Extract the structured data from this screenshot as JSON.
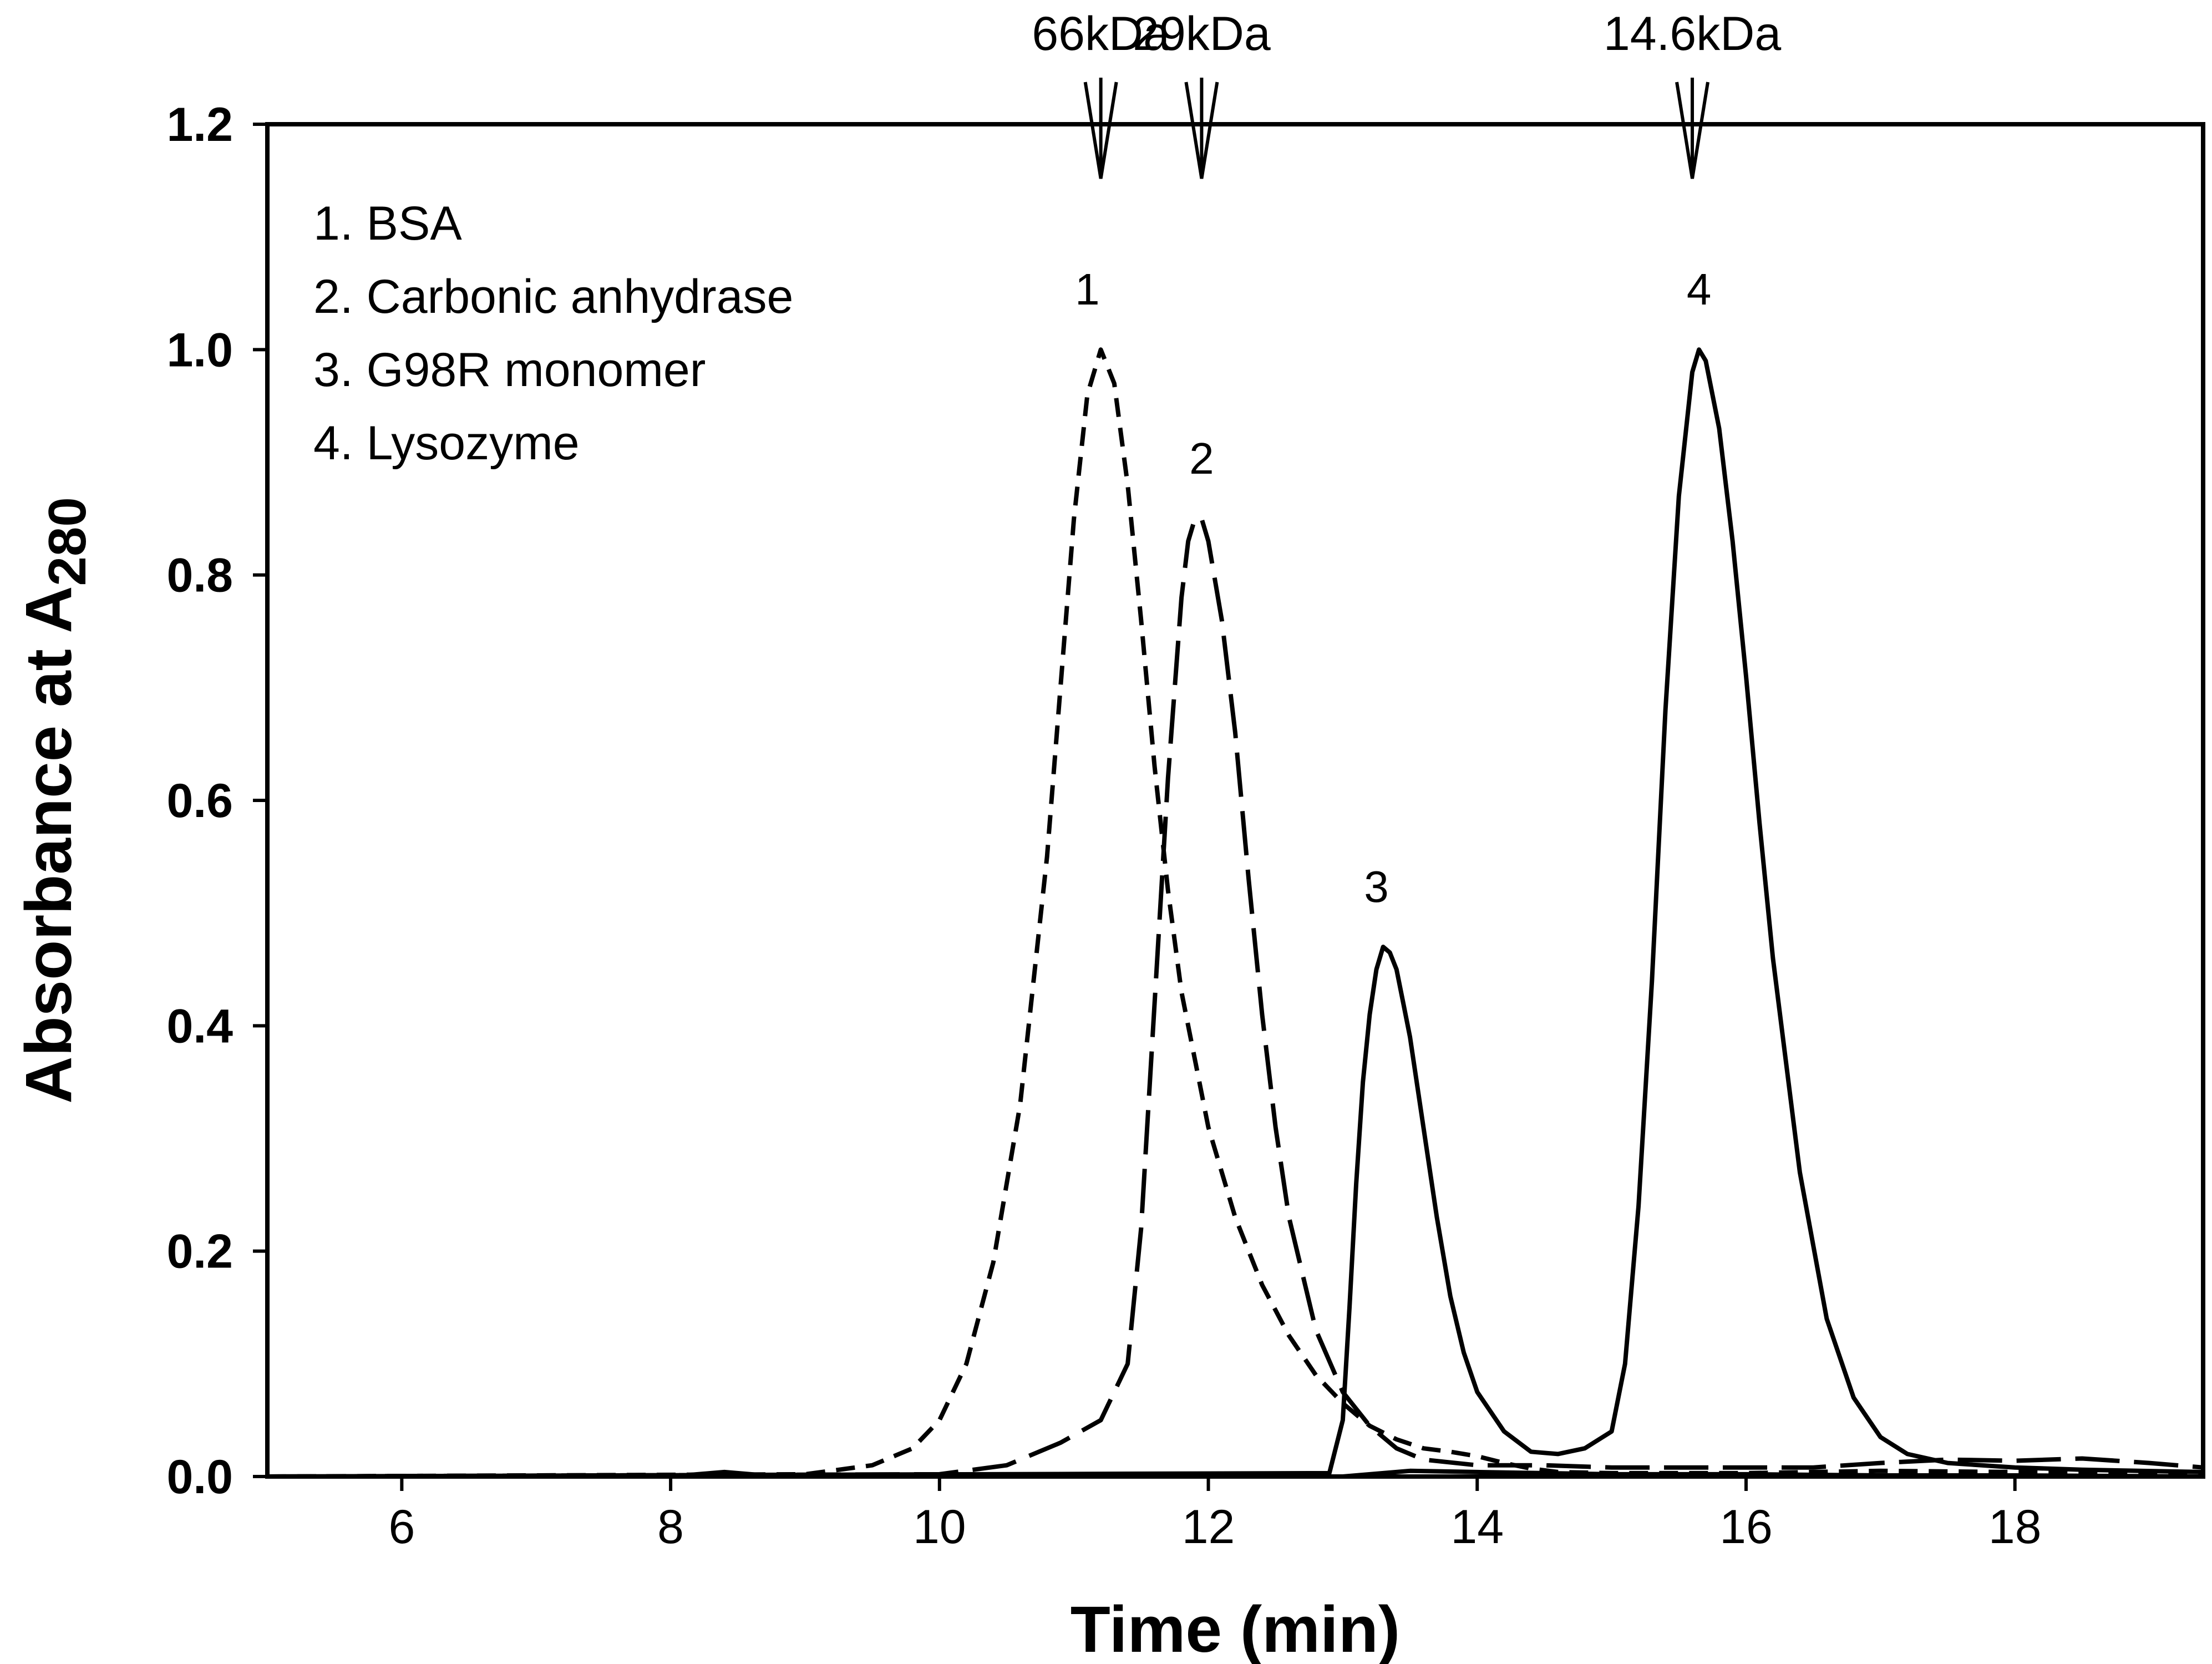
{
  "chart_data": {
    "type": "line",
    "title": "",
    "xlabel": "Time (min)",
    "ylabel_main": "Absorbance at A",
    "ylabel_sub": "280",
    "xlim": [
      5,
      19.4
    ],
    "ylim": [
      0,
      1.2
    ],
    "xticks": [
      6,
      8,
      10,
      12,
      14,
      16,
      18
    ],
    "xtick_labels": [
      "6",
      "8",
      "10",
      "12",
      "14",
      "16",
      "18"
    ],
    "yticks": [
      0,
      0.2,
      0.4,
      0.6,
      0.8,
      1.0,
      1.2
    ],
    "ytick_labels": [
      "0.0",
      "0.2",
      "0.4",
      "0.6",
      "0.8",
      "1.0",
      "1.2"
    ],
    "grid": false,
    "legend_position": "top-left",
    "legend": [
      "1. BSA",
      "2. Carbonic anhydrase",
      "3. G98R monomer",
      "4. Lysozyme"
    ],
    "markers": [
      {
        "label": "66kDa",
        "x": 11.2
      },
      {
        "label": "29kDa",
        "x": 11.95
      },
      {
        "label": "14.6kDa",
        "x": 15.6
      }
    ],
    "peak_labels": [
      {
        "label": "1",
        "x": 11.1,
        "y": 1.04
      },
      {
        "label": "2",
        "x": 11.95,
        "y": 0.89
      },
      {
        "label": "3",
        "x": 13.25,
        "y": 0.51
      },
      {
        "label": "4",
        "x": 15.65,
        "y": 1.04
      }
    ],
    "series": [
      {
        "style": "dashed-short",
        "x": [
          5.0,
          9.0,
          9.5,
          9.8,
          10.0,
          10.2,
          10.4,
          10.6,
          10.8,
          10.9,
          11.0,
          11.1,
          11.2,
          11.3,
          11.4,
          11.5,
          11.6,
          11.7,
          11.8,
          12.0,
          12.2,
          12.4,
          12.6,
          12.8,
          13.0,
          13.2,
          13.4,
          13.6,
          13.8,
          14.0,
          14.2,
          14.4,
          14.6,
          15.0,
          16.0,
          17.0,
          18.0,
          19.4
        ],
        "y": [
          0.0,
          0.002,
          0.01,
          0.025,
          0.05,
          0.1,
          0.19,
          0.33,
          0.55,
          0.7,
          0.85,
          0.96,
          1.0,
          0.97,
          0.88,
          0.76,
          0.63,
          0.52,
          0.43,
          0.31,
          0.23,
          0.17,
          0.125,
          0.09,
          0.065,
          0.045,
          0.033,
          0.025,
          0.022,
          0.018,
          0.012,
          0.007,
          0.004,
          0.003,
          0.003,
          0.005,
          0.004,
          0.003
        ]
      },
      {
        "style": "dashed-long",
        "x": [
          5.0,
          10.0,
          10.5,
          10.9,
          11.2,
          11.4,
          11.5,
          11.6,
          11.7,
          11.8,
          11.85,
          11.9,
          11.95,
          12.0,
          12.1,
          12.2,
          12.3,
          12.4,
          12.5,
          12.6,
          12.8,
          13.0,
          13.2,
          13.4,
          13.6,
          14.0,
          14.5,
          15.0,
          16.0,
          16.5,
          17.0,
          17.5,
          18.0,
          18.5,
          19.0,
          19.4
        ],
        "y": [
          0.0,
          0.002,
          0.01,
          0.03,
          0.05,
          0.1,
          0.22,
          0.42,
          0.62,
          0.78,
          0.83,
          0.85,
          0.85,
          0.83,
          0.76,
          0.66,
          0.53,
          0.41,
          0.31,
          0.23,
          0.13,
          0.075,
          0.045,
          0.025,
          0.015,
          0.01,
          0.01,
          0.008,
          0.008,
          0.008,
          0.012,
          0.015,
          0.014,
          0.016,
          0.012,
          0.008
        ]
      },
      {
        "style": "solid",
        "x": [
          5.0,
          12.9,
          13.0,
          13.05,
          13.1,
          13.15,
          13.2,
          13.25,
          13.3,
          13.35,
          13.4,
          13.45,
          13.5,
          13.6,
          13.7,
          13.8,
          13.9,
          14.0,
          14.2,
          14.4,
          14.6,
          14.8,
          15.0,
          15.1,
          15.2,
          15.3,
          15.4,
          15.5,
          15.6,
          15.65,
          15.7,
          15.8,
          15.9,
          16.0,
          16.1,
          16.2,
          16.4,
          16.6,
          16.8,
          17.0,
          17.2,
          17.5,
          18.0,
          18.5,
          19.4
        ],
        "y": [
          0.0,
          0.003,
          0.05,
          0.15,
          0.26,
          0.35,
          0.41,
          0.45,
          0.47,
          0.465,
          0.45,
          0.42,
          0.39,
          0.31,
          0.23,
          0.16,
          0.11,
          0.075,
          0.04,
          0.022,
          0.02,
          0.025,
          0.04,
          0.1,
          0.24,
          0.44,
          0.68,
          0.87,
          0.98,
          1.0,
          0.99,
          0.93,
          0.83,
          0.71,
          0.58,
          0.46,
          0.27,
          0.14,
          0.07,
          0.035,
          0.02,
          0.012,
          0.008,
          0.006,
          0.004
        ]
      },
      {
        "style": "solid",
        "x": [
          5.0,
          8.0,
          8.4,
          8.8,
          13.0,
          13.5,
          14.0,
          14.5,
          15.0,
          16.0,
          17.0,
          18.0,
          19.4
        ],
        "y": [
          0.0,
          0.0,
          0.004,
          0.0,
          0.0,
          0.005,
          0.004,
          0.003,
          0.002,
          0.002,
          0.001,
          0.001,
          0.0
        ]
      }
    ]
  }
}
